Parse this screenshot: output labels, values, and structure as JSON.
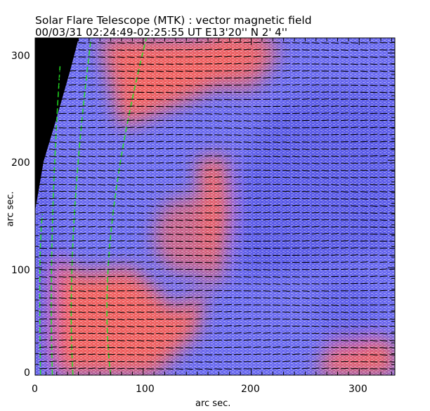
{
  "chart_data": {
    "type": "heatmap",
    "title": "Solar Flare Telescope (MTK) : vector magnetic field",
    "subtitle": "00/03/31  02:24:49-02:25:55 UT    E13'20''   N 2' 4''",
    "xlabel": "arc sec.",
    "ylabel": "arc sec.",
    "xlim": [
      0,
      333
    ],
    "ylim": [
      0,
      314
    ],
    "xticks": [
      "0",
      "100",
      "200",
      "300"
    ],
    "yticks": [
      "0",
      "100",
      "200",
      "300"
    ],
    "colors": {
      "positive": "#f06060",
      "negative": "#5a5ae8",
      "contour": "#22dd22",
      "vectors": "#000000",
      "off_disk": "#000000"
    },
    "regions": [
      {
        "polarity": "positive",
        "center": [
          140,
          130
        ],
        "label": ""
      },
      {
        "polarity": "positive",
        "center": [
          60,
          40
        ],
        "label": ""
      },
      {
        "polarity": "positive",
        "center": [
          190,
          300
        ],
        "label": ""
      },
      {
        "polarity": "negative",
        "center": [
          240,
          160
        ],
        "label": ""
      },
      {
        "polarity": "negative",
        "center": [
          290,
          60
        ],
        "label": ""
      }
    ]
  }
}
